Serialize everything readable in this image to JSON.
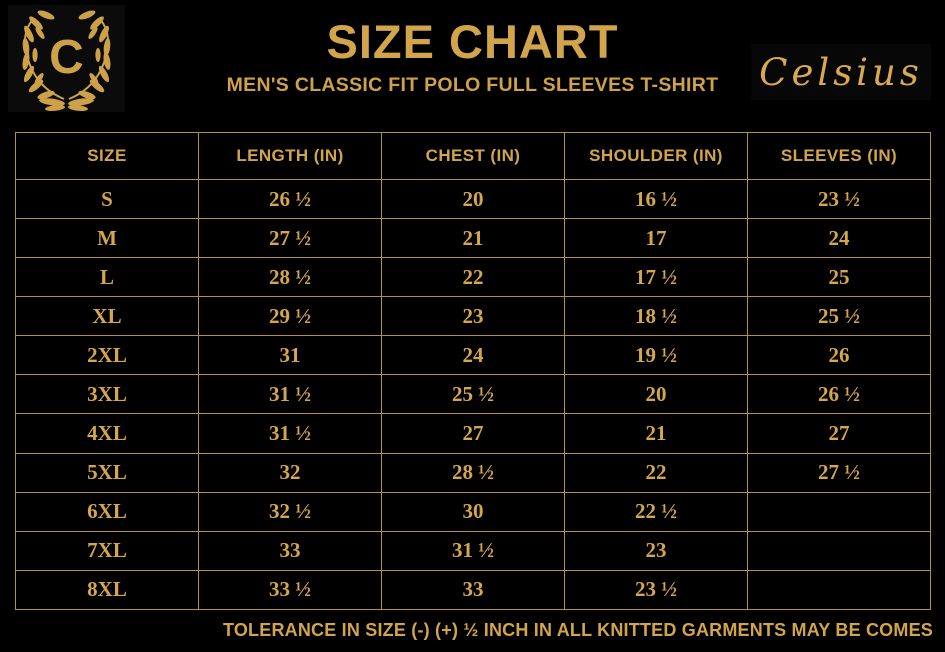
{
  "brand": {
    "logo_letter": "C",
    "script_name": "Celsius"
  },
  "header": {
    "title": "SIZE CHART",
    "subtitle": "MEN'S CLASSIC FIT POLO FULL SLEEVES T-SHIRT"
  },
  "table": {
    "columns": [
      "SIZE",
      "LENGTH (IN)",
      "CHEST (IN)",
      "SHOULDER (IN)",
      "SLEEVES (IN)"
    ],
    "rows": [
      {
        "size": "S",
        "values": [
          "26 ½",
          "20",
          "16 ½",
          "23 ½"
        ]
      },
      {
        "size": "M",
        "values": [
          "27 ½",
          "21",
          "17",
          "24"
        ]
      },
      {
        "size": "L",
        "values": [
          "28 ½",
          "22",
          "17 ½",
          "25"
        ]
      },
      {
        "size": "XL",
        "values": [
          "29 ½",
          "23",
          "18 ½",
          "25 ½"
        ]
      },
      {
        "size": "2XL",
        "values": [
          "31",
          "24",
          "19 ½",
          "26"
        ]
      },
      {
        "size": "3XL",
        "values": [
          "31 ½",
          "25 ½",
          "20",
          "26 ½"
        ]
      },
      {
        "size": "4XL",
        "values": [
          "31 ½",
          "27",
          "21",
          "27"
        ]
      },
      {
        "size": "5XL",
        "values": [
          "32",
          "28 ½",
          "22",
          "27 ½"
        ]
      },
      {
        "size": "6XL",
        "values": [
          "32 ½",
          "30",
          "22 ½",
          ""
        ]
      },
      {
        "size": "7XL",
        "values": [
          "33",
          "31 ½",
          "23",
          ""
        ]
      },
      {
        "size": "8XL",
        "values": [
          "33 ½",
          "33",
          "23 ½",
          ""
        ]
      }
    ]
  },
  "footer": {
    "note": "TOLERANCE IN SIZE (-) (+)  ½ INCH IN ALL KNITTED GARMENTS MAY BE COMES"
  },
  "colors": {
    "background": "#000000",
    "gold_text": "#d2a54b",
    "table_border": "#b3913f"
  }
}
